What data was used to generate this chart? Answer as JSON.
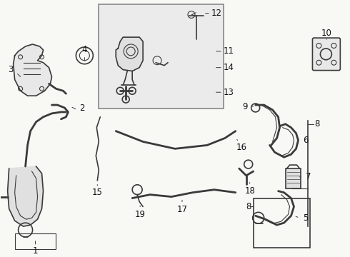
{
  "bg_color": "#f8f8f5",
  "line_color": "#3a3a3a",
  "box_bg": "#eaeaea",
  "text_color": "#111111",
  "fig_width": 4.9,
  "fig_height": 3.6,
  "dpi": 100
}
